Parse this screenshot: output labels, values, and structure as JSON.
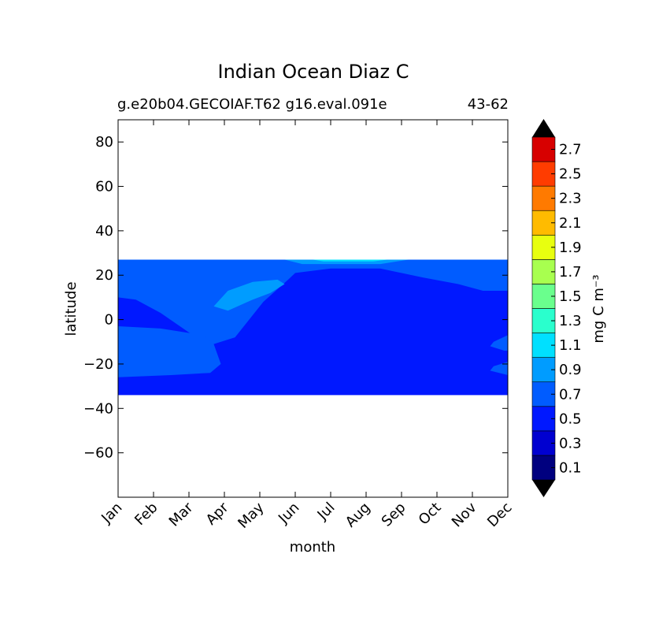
{
  "chart_data": {
    "type": "contourf",
    "title": "Indian Ocean Diaz C",
    "subtitle_left": "g.e20b04.GECOIAF.T62 g16.eval.091e",
    "subtitle_right": "43-62",
    "xlabel": "month",
    "ylabel": "latitude",
    "x_categories": [
      "Jan",
      "Feb",
      "Mar",
      "Apr",
      "May",
      "Jun",
      "Jul",
      "Aug",
      "Sep",
      "Oct",
      "Nov",
      "Dec"
    ],
    "ylim": [
      -80,
      90
    ],
    "yticks": [
      -60,
      -40,
      -20,
      0,
      20,
      40,
      60,
      80
    ],
    "ytick_labels": [
      "−60",
      "−40",
      "−20",
      "0",
      "20",
      "40",
      "60",
      "80"
    ],
    "data_lat_range": [
      -34,
      27
    ],
    "colorbar": {
      "label": "mg C m⁻³",
      "levels": [
        0.0,
        0.2,
        0.4,
        0.6,
        0.8,
        1.0,
        1.2,
        1.4,
        1.6,
        1.8,
        2.0,
        2.2,
        2.4,
        2.6,
        2.8
      ],
      "tick_labels": [
        "0.1",
        "0.3",
        "0.5",
        "0.7",
        "0.9",
        "1.1",
        "1.3",
        "1.5",
        "1.7",
        "1.9",
        "2.1",
        "2.3",
        "2.5",
        "2.7"
      ],
      "colors": [
        "#00007f",
        "#0000d0",
        "#0018ff",
        "#005cff",
        "#009cff",
        "#00e0ff",
        "#2affcd",
        "#6aff8d",
        "#a8ff4f",
        "#e8ff0f",
        "#ffbb00",
        "#ff7a00",
        "#ff3c00",
        "#d70000",
        "#800000"
      ],
      "under_color": "#000000",
      "over_color": "#000000",
      "extend": "both"
    },
    "background_level_color": "#0018ff",
    "contour_regions": [
      {
        "level": "0.4-0.6",
        "color": "#005cff",
        "desc": "northern band",
        "points": [
          [
            0,
            27
          ],
          [
            11,
            27
          ],
          [
            11,
            13
          ],
          [
            10.3,
            13
          ],
          [
            9.6,
            16
          ],
          [
            8.6,
            19
          ],
          [
            7.4,
            23
          ],
          [
            6,
            23
          ],
          [
            5,
            21
          ],
          [
            4.8,
            18
          ],
          [
            4.1,
            8
          ],
          [
            3.3,
            -8
          ],
          [
            2.7,
            -11
          ],
          [
            2.2,
            -8
          ],
          [
            1.2,
            3
          ],
          [
            0.5,
            9
          ],
          [
            0,
            10
          ]
        ]
      },
      {
        "level": "0.4-0.6",
        "color": "#005cff",
        "desc": "southern band",
        "points": [
          [
            0,
            -3
          ],
          [
            1.2,
            -4
          ],
          [
            2.4,
            -7
          ],
          [
            2.7,
            -11
          ],
          [
            2.9,
            -20
          ],
          [
            2.6,
            -24
          ],
          [
            1.5,
            -25
          ],
          [
            0,
            -26
          ]
        ]
      },
      {
        "level": "0.4-0.6",
        "color": "#005cff",
        "desc": "December lower patch",
        "points": [
          [
            11,
            -7
          ],
          [
            10.6,
            -10
          ],
          [
            10.5,
            -12
          ],
          [
            10.9,
            -14
          ],
          [
            11,
            -14
          ]
        ]
      },
      {
        "level": "0.4-0.6",
        "color": "#005cff",
        "desc": "December south patch",
        "points": [
          [
            11,
            -19
          ],
          [
            10.6,
            -21
          ],
          [
            10.5,
            -23
          ],
          [
            11,
            -25
          ]
        ]
      },
      {
        "level": "0.6-0.8",
        "color": "#009cff",
        "desc": "spring patch",
        "points": [
          [
            2.7,
            6
          ],
          [
            3.1,
            13
          ],
          [
            3.8,
            17
          ],
          [
            4.5,
            18
          ],
          [
            4.7,
            16
          ],
          [
            4.3,
            12
          ],
          [
            3.8,
            9
          ],
          [
            3.1,
            4
          ]
        ]
      },
      {
        "level": "0.6-0.8",
        "color": "#009cff",
        "desc": "summer north edge",
        "points": [
          [
            4.7,
            27
          ],
          [
            8.2,
            27
          ],
          [
            7.4,
            25
          ],
          [
            5.2,
            25
          ]
        ]
      },
      {
        "level": "0.8-1.0",
        "color": "#00e0ff",
        "desc": "thin sliver",
        "points": [
          [
            5.5,
            27
          ],
          [
            7.6,
            27
          ],
          [
            7.2,
            26.2
          ],
          [
            5.8,
            26.2
          ]
        ]
      }
    ]
  }
}
